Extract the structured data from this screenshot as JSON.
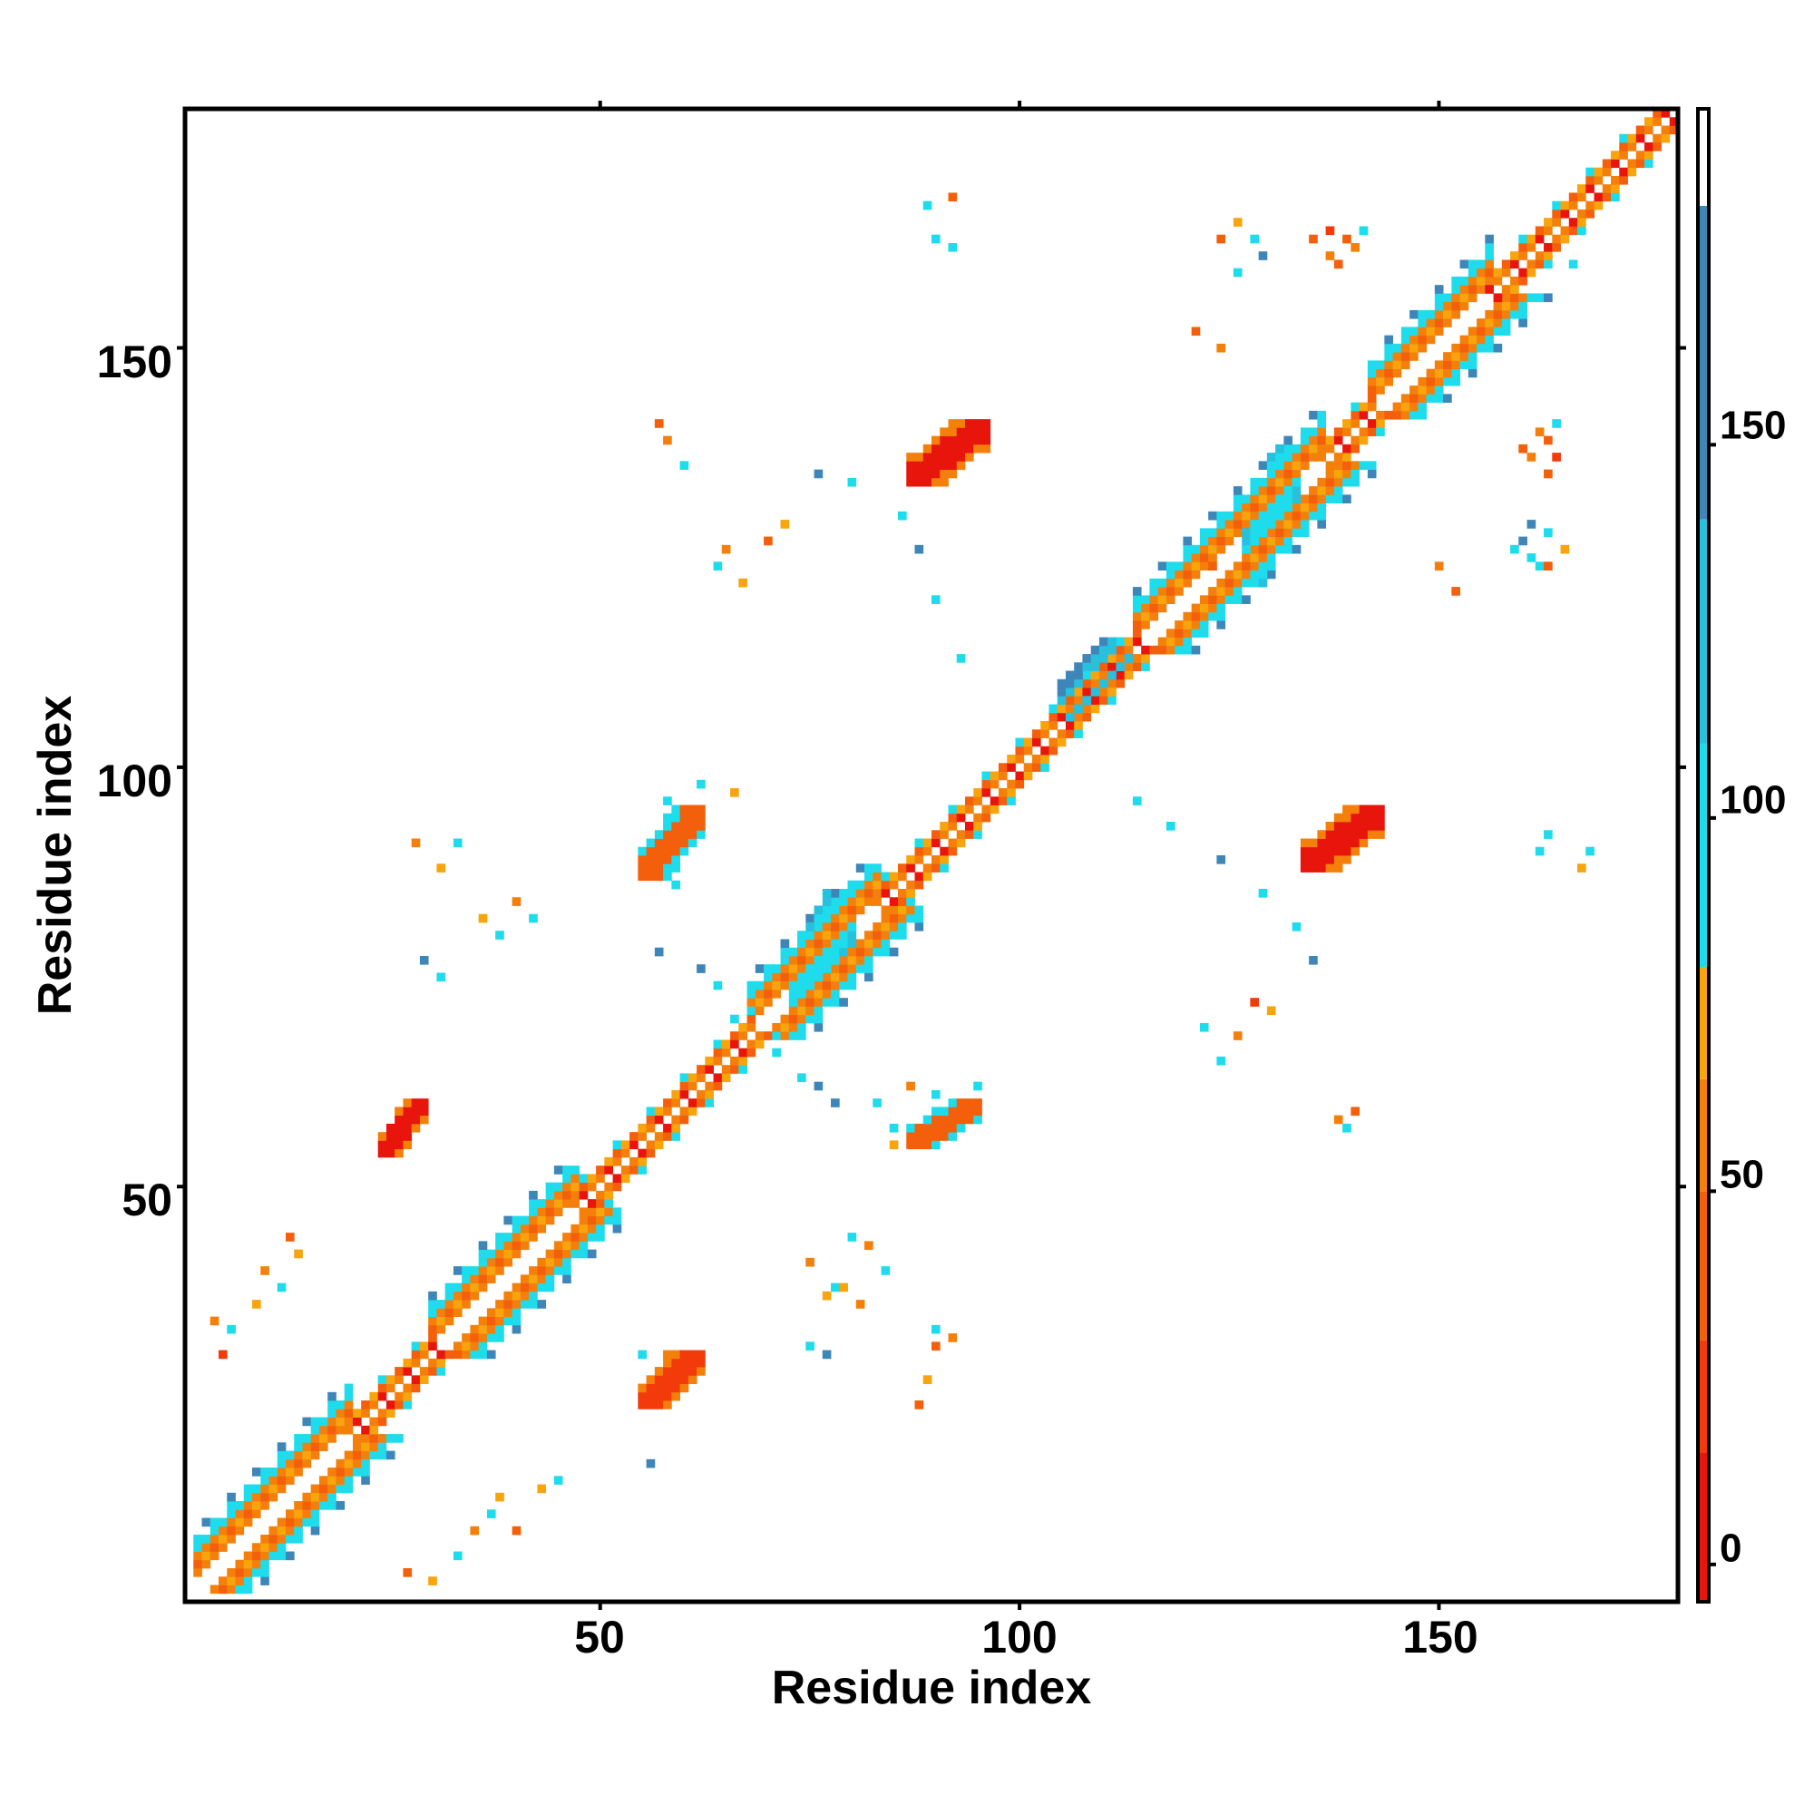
{
  "chart_data": {
    "type": "heatmap",
    "title": "",
    "xlabel": "Residue index",
    "ylabel": "Residue index",
    "xlim": [
      1,
      178
    ],
    "ylim": [
      1,
      178
    ],
    "x_ticks": [
      "50",
      "100",
      "150"
    ],
    "y_ticks": [
      "50",
      "100",
      "150"
    ],
    "colorbar": {
      "ticks": [
        "0",
        "50",
        "100",
        "150"
      ],
      "range": [
        -5,
        195
      ],
      "bands": [
        {
          "from": -5,
          "to": 15,
          "color": "#e8150c"
        },
        {
          "from": 15,
          "to": 30,
          "color": "#f33a0a"
        },
        {
          "from": 30,
          "to": 50,
          "color": "#f45f0b"
        },
        {
          "from": 50,
          "to": 65,
          "color": "#f4800b"
        },
        {
          "from": 65,
          "to": 80,
          "color": "#f8a40d"
        },
        {
          "from": 80,
          "to": 110,
          "color": "#1fdcec"
        },
        {
          "from": 110,
          "to": 140,
          "color": "#27c0dd"
        },
        {
          "from": 140,
          "to": 182,
          "color": "#3f86b8"
        },
        {
          "from": 182,
          "to": 195,
          "color": "#ffffff"
        }
      ]
    },
    "grid": false,
    "legend": "colorbar-right",
    "band_note": "Each contact is plotted symmetrically at (i,j) and (j,i); value encodes the color band.",
    "diagonal_segments": [
      {
        "start": 2,
        "end": 20,
        "kind": "helix"
      },
      {
        "start": 20,
        "end": 30,
        "kind": "coil"
      },
      {
        "start": 30,
        "end": 47,
        "kind": "helix"
      },
      {
        "start": 47,
        "end": 60,
        "kind": "coil"
      },
      {
        "start": 60,
        "end": 68,
        "kind": "coil"
      },
      {
        "start": 68,
        "end": 83,
        "kind": "helix"
      },
      {
        "start": 83,
        "end": 104,
        "kind": "coil"
      },
      {
        "start": 104,
        "end": 114,
        "kind": "coil"
      },
      {
        "start": 114,
        "end": 136,
        "kind": "helix"
      },
      {
        "start": 136,
        "end": 142,
        "kind": "coil"
      },
      {
        "start": 142,
        "end": 156,
        "kind": "helix"
      },
      {
        "start": 156,
        "end": 178,
        "kind": "coil"
      }
    ],
    "blocks": [
      {
        "i": [
          24,
          29
        ],
        "j": [
          54,
          60
        ],
        "value": 8
      },
      {
        "i": [
          55,
          62
        ],
        "j": [
          24,
          30
        ],
        "value": 15
      },
      {
        "i": [
          55,
          62
        ],
        "j": [
          87,
          95
        ],
        "value": 40
      },
      {
        "i": [
          87,
          95
        ],
        "j": [
          55,
          60
        ],
        "value": 45
      },
      {
        "i": [
          87,
          96
        ],
        "j": [
          134,
          141
        ],
        "value": 12
      },
      {
        "i": [
          134,
          143
        ],
        "j": [
          88,
          95
        ],
        "value": 10
      },
      {
        "i": [
          105,
          113
        ],
        "j": [
          106,
          115
        ],
        "value": 125
      },
      {
        "i": [
          73,
          80
        ],
        "j": [
          70,
          85
        ],
        "value": 105
      },
      {
        "i": [
          127,
          133
        ],
        "j": [
          122,
          138
        ],
        "value": 100
      }
    ],
    "scatter_contacts": [
      {
        "i": 4,
        "j": 34,
        "value": 60
      },
      {
        "i": 5,
        "j": 30,
        "value": 20
      },
      {
        "i": 6,
        "j": 33,
        "value": 95
      },
      {
        "i": 9,
        "j": 36,
        "value": 70
      },
      {
        "i": 10,
        "j": 40,
        "value": 60
      },
      {
        "i": 12,
        "j": 38,
        "value": 95
      },
      {
        "i": 13,
        "j": 44,
        "value": 30
      },
      {
        "i": 14,
        "j": 42,
        "value": 75
      },
      {
        "i": 27,
        "j": 4,
        "value": 30
      },
      {
        "i": 30,
        "j": 3,
        "value": 75
      },
      {
        "i": 33,
        "j": 6,
        "value": 95
      },
      {
        "i": 35,
        "j": 9,
        "value": 60
      },
      {
        "i": 37,
        "j": 11,
        "value": 95
      },
      {
        "i": 38,
        "j": 13,
        "value": 70
      },
      {
        "i": 40,
        "j": 9,
        "value": 45
      },
      {
        "i": 43,
        "j": 14,
        "value": 65
      },
      {
        "i": 45,
        "j": 15,
        "value": 95
      },
      {
        "i": 31,
        "j": 88,
        "value": 75
      },
      {
        "i": 33,
        "j": 91,
        "value": 95
      },
      {
        "i": 28,
        "j": 91,
        "value": 60
      },
      {
        "i": 36,
        "j": 82,
        "value": 70
      },
      {
        "i": 38,
        "j": 80,
        "value": 95
      },
      {
        "i": 40,
        "j": 84,
        "value": 60
      },
      {
        "i": 42,
        "j": 82,
        "value": 100
      },
      {
        "i": 29,
        "j": 77,
        "value": 150
      },
      {
        "i": 31,
        "j": 75,
        "value": 100
      },
      {
        "i": 81,
        "j": 36,
        "value": 60
      },
      {
        "i": 84,
        "j": 40,
        "value": 100
      },
      {
        "i": 79,
        "j": 38,
        "value": 75
      },
      {
        "i": 82,
        "j": 43,
        "value": 60
      },
      {
        "i": 77,
        "j": 30,
        "value": 150
      },
      {
        "i": 75,
        "j": 31,
        "value": 95
      },
      {
        "i": 90,
        "j": 31,
        "value": 45
      },
      {
        "i": 89,
        "j": 27,
        "value": 70
      },
      {
        "i": 58,
        "j": 30,
        "value": 60
      },
      {
        "i": 55,
        "j": 30,
        "value": 100
      },
      {
        "i": 62,
        "j": 93,
        "value": 75
      },
      {
        "i": 59,
        "j": 86,
        "value": 95
      },
      {
        "i": 56,
        "j": 17,
        "value": 140
      },
      {
        "i": 88,
        "j": 24,
        "value": 45
      },
      {
        "i": 58,
        "j": 96,
        "value": 100
      },
      {
        "i": 90,
        "j": 61,
        "value": 95
      },
      {
        "i": 85,
        "j": 55,
        "value": 75
      },
      {
        "i": 87,
        "j": 62,
        "value": 60
      },
      {
        "i": 92,
        "j": 58,
        "value": 100
      },
      {
        "i": 95,
        "j": 62,
        "value": 95
      },
      {
        "i": 62,
        "j": 98,
        "value": 95
      },
      {
        "i": 66,
        "j": 97,
        "value": 75
      },
      {
        "i": 57,
        "j": 78,
        "value": 150
      },
      {
        "i": 62,
        "j": 76,
        "value": 140
      },
      {
        "i": 64,
        "j": 74,
        "value": 100
      },
      {
        "i": 66,
        "j": 70,
        "value": 95
      },
      {
        "i": 71,
        "j": 66,
        "value": 95
      },
      {
        "i": 74,
        "j": 63,
        "value": 100
      },
      {
        "i": 78,
        "j": 60,
        "value": 150
      },
      {
        "i": 76,
        "j": 62,
        "value": 140
      },
      {
        "i": 85,
        "j": 57,
        "value": 100
      },
      {
        "i": 83,
        "j": 60,
        "value": 95
      },
      {
        "i": 75,
        "j": 41,
        "value": 60
      },
      {
        "i": 77,
        "j": 37,
        "value": 75
      },
      {
        "i": 78,
        "j": 38,
        "value": 100
      },
      {
        "i": 80,
        "j": 44,
        "value": 95
      },
      {
        "i": 90,
        "j": 33,
        "value": 100
      },
      {
        "i": 92,
        "j": 32,
        "value": 60
      },
      {
        "i": 65,
        "j": 126,
        "value": 60
      },
      {
        "i": 67,
        "j": 122,
        "value": 75
      },
      {
        "i": 64,
        "j": 124,
        "value": 100
      },
      {
        "i": 70,
        "j": 127,
        "value": 30
      },
      {
        "i": 72,
        "j": 129,
        "value": 75
      },
      {
        "i": 60,
        "j": 136,
        "value": 95
      },
      {
        "i": 58,
        "j": 139,
        "value": 60
      },
      {
        "i": 57,
        "j": 141,
        "value": 45
      },
      {
        "i": 124,
        "j": 65,
        "value": 95
      },
      {
        "i": 126,
        "j": 68,
        "value": 60
      },
      {
        "i": 122,
        "j": 69,
        "value": 100
      },
      {
        "i": 128,
        "j": 72,
        "value": 20
      },
      {
        "i": 130,
        "j": 71,
        "value": 75
      },
      {
        "i": 138,
        "j": 58,
        "value": 60
      },
      {
        "i": 140,
        "j": 59,
        "value": 45
      },
      {
        "i": 139,
        "j": 57,
        "value": 100
      },
      {
        "i": 76,
        "j": 135,
        "value": 140
      },
      {
        "i": 80,
        "j": 134,
        "value": 95
      },
      {
        "i": 86,
        "j": 130,
        "value": 100
      },
      {
        "i": 88,
        "j": 126,
        "value": 150
      },
      {
        "i": 90,
        "j": 120,
        "value": 100
      },
      {
        "i": 93,
        "j": 113,
        "value": 95
      },
      {
        "i": 135,
        "j": 77,
        "value": 140
      },
      {
        "i": 133,
        "j": 81,
        "value": 100
      },
      {
        "i": 129,
        "j": 85,
        "value": 95
      },
      {
        "i": 124,
        "j": 89,
        "value": 150
      },
      {
        "i": 118,
        "j": 93,
        "value": 100
      },
      {
        "i": 114,
        "j": 96,
        "value": 95
      },
      {
        "i": 89,
        "j": 167,
        "value": 95
      },
      {
        "i": 92,
        "j": 168,
        "value": 45
      },
      {
        "i": 168,
        "j": 90,
        "value": 95
      },
      {
        "i": 167,
        "j": 88,
        "value": 75
      },
      {
        "i": 121,
        "j": 152,
        "value": 45
      },
      {
        "i": 124,
        "j": 150,
        "value": 60
      },
      {
        "i": 126,
        "j": 159,
        "value": 95
      },
      {
        "i": 129,
        "j": 161,
        "value": 150
      },
      {
        "i": 128,
        "j": 163,
        "value": 100
      },
      {
        "i": 152,
        "j": 121,
        "value": 45
      },
      {
        "i": 150,
        "j": 124,
        "value": 60
      },
      {
        "i": 159,
        "j": 126,
        "value": 95
      },
      {
        "i": 161,
        "j": 129,
        "value": 150
      },
      {
        "i": 163,
        "j": 128,
        "value": 100
      },
      {
        "i": 138,
        "j": 160,
        "value": 45
      },
      {
        "i": 140,
        "j": 162,
        "value": 60
      },
      {
        "i": 139,
        "j": 163,
        "value": 30
      },
      {
        "i": 141,
        "j": 164,
        "value": 95
      },
      {
        "i": 160,
        "j": 138,
        "value": 45
      },
      {
        "i": 162,
        "j": 140,
        "value": 60
      },
      {
        "i": 163,
        "j": 139,
        "value": 30
      },
      {
        "i": 164,
        "j": 141,
        "value": 95
      },
      {
        "i": 161,
        "j": 137,
        "value": 60
      },
      {
        "i": 163,
        "j": 135,
        "value": 45
      },
      {
        "i": 164,
        "j": 137,
        "value": 20
      },
      {
        "i": 162,
        "j": 140,
        "value": 95
      },
      {
        "i": 137,
        "j": 161,
        "value": 60
      },
      {
        "i": 135,
        "j": 163,
        "value": 45
      },
      {
        "i": 137,
        "j": 164,
        "value": 20
      },
      {
        "i": 161,
        "j": 125,
        "value": 100
      },
      {
        "i": 160,
        "j": 127,
        "value": 150
      },
      {
        "i": 162,
        "j": 124,
        "value": 95
      },
      {
        "i": 124,
        "j": 163,
        "value": 45
      },
      {
        "i": 126,
        "j": 165,
        "value": 75
      },
      {
        "i": 163,
        "j": 124,
        "value": 45
      },
      {
        "i": 165,
        "j": 126,
        "value": 75
      },
      {
        "i": 120,
        "j": 125,
        "value": 60
      },
      {
        "i": 123,
        "j": 124,
        "value": 45
      },
      {
        "i": 127,
        "j": 123,
        "value": 30
      },
      {
        "i": 125,
        "j": 120,
        "value": 60
      },
      {
        "i": 163,
        "j": 92,
        "value": 95
      },
      {
        "i": 162,
        "j": 90,
        "value": 100
      },
      {
        "i": 92,
        "j": 162,
        "value": 95
      },
      {
        "i": 90,
        "j": 163,
        "value": 100
      },
      {
        "i": 166,
        "j": 160,
        "value": 95
      },
      {
        "i": 164,
        "j": 141,
        "value": 75
      }
    ]
  }
}
